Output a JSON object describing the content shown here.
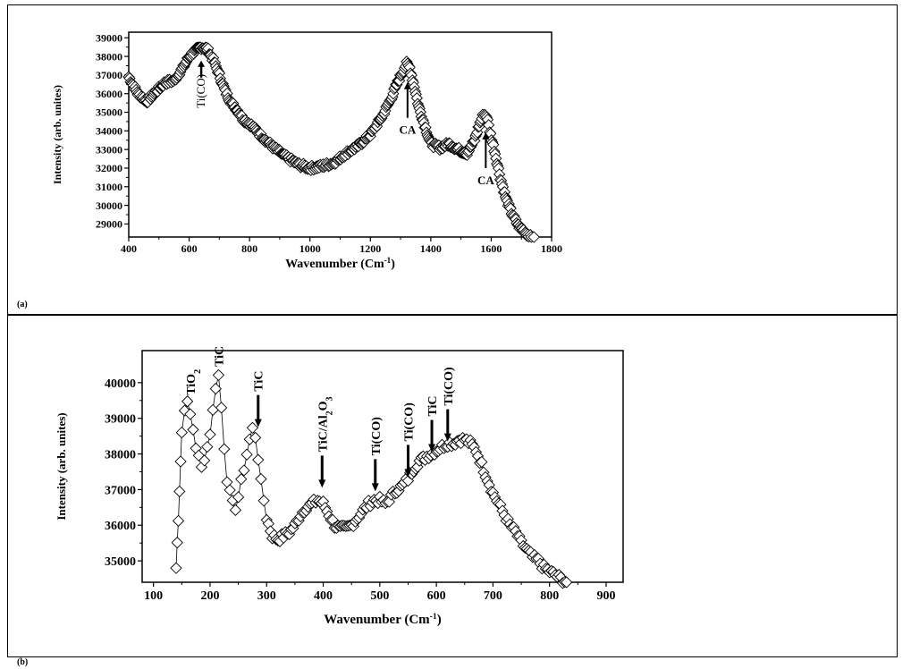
{
  "chart_data": [
    {
      "panel_label": "(a)",
      "type": "scatter",
      "marker": "open-diamond",
      "xlabel_main": "Wavenumber (Cm",
      "xlabel_sup": "-1",
      "xlabel_end": ")",
      "ylabel": "Intensity (arb. unites)",
      "xlim": [
        400,
        1800
      ],
      "ylim": [
        28300,
        39300
      ],
      "xticks": [
        400,
        600,
        800,
        1000,
        1200,
        1400,
        1600,
        1800
      ],
      "yticks": [
        29000,
        30000,
        31000,
        32000,
        33000,
        34000,
        35000,
        36000,
        37000,
        38000,
        39000
      ],
      "grid": false,
      "legend": "none",
      "series": [
        {
          "x": [
            400,
            430,
            460,
            490,
            520,
            550,
            580,
            600,
            620,
            640,
            660,
            680,
            700,
            720,
            740,
            760,
            780,
            800,
            840,
            880,
            920,
            960,
            1000,
            1040,
            1080,
            1120,
            1160,
            1200,
            1240,
            1270,
            1290,
            1310,
            1320,
            1330,
            1345,
            1360,
            1380,
            1400,
            1430,
            1460,
            1490,
            1520,
            1545,
            1560,
            1575,
            1585,
            1595,
            1610,
            1630,
            1650,
            1670,
            1690,
            1710,
            1730,
            1750,
            1770
          ],
          "y": [
            36900,
            36000,
            35600,
            36100,
            36600,
            36700,
            37400,
            38000,
            38300,
            38500,
            38400,
            37800,
            37000,
            36100,
            35500,
            35100,
            34600,
            34400,
            33700,
            33100,
            32600,
            32200,
            32000,
            32100,
            32300,
            32800,
            33200,
            33800,
            34800,
            35800,
            36600,
            37300,
            37600,
            37400,
            36400,
            35300,
            34300,
            33300,
            33100,
            33300,
            33000,
            32800,
            33500,
            34300,
            34900,
            34800,
            34000,
            33000,
            31500,
            30300,
            29500,
            28900,
            28600,
            28300,
            28100,
            28000
          ]
        }
      ],
      "annotations": [
        {
          "text": "Ti(CO)",
          "x": 640,
          "y": 38400,
          "vertical": true
        },
        {
          "text": "CA",
          "x": 1323,
          "y": 37200,
          "vertical": false
        },
        {
          "text": "CA",
          "x": 1582,
          "y": 34500,
          "vertical": false
        }
      ]
    },
    {
      "panel_label": "(b)",
      "type": "scatter",
      "marker": "open-diamond",
      "xlabel_main": "Wavenumber (Cm",
      "xlabel_sup": "-1",
      "xlabel_end": ")",
      "ylabel": "Intensity (arb. unites)",
      "xlim": [
        80,
        930
      ],
      "ylim": [
        34400,
        40900
      ],
      "xticks": [
        100,
        200,
        300,
        400,
        500,
        600,
        700,
        800,
        900
      ],
      "yticks": [
        35000,
        36000,
        37000,
        38000,
        39000,
        40000
      ],
      "grid": false,
      "legend": "none",
      "series": [
        {
          "x": [
            140,
            142,
            144,
            146,
            148,
            150,
            155,
            160,
            165,
            170,
            175,
            180,
            185,
            190,
            195,
            200,
            205,
            210,
            215,
            220,
            225,
            230,
            235,
            240,
            245,
            250,
            255,
            260,
            265,
            270,
            275,
            280,
            285,
            290,
            295,
            300,
            310,
            320,
            330,
            340,
            350,
            360,
            370,
            380,
            390,
            400,
            410,
            420,
            430,
            440,
            450,
            460,
            470,
            480,
            490,
            500,
            510,
            520,
            530,
            540,
            550,
            560,
            570,
            580,
            590,
            600,
            610,
            620,
            630,
            640,
            650,
            660,
            670,
            680,
            690,
            700,
            710,
            720,
            730,
            740,
            750,
            760,
            770,
            780,
            790,
            800,
            810,
            820,
            830
          ],
          "y": [
            34800,
            35500,
            36200,
            37000,
            37800,
            38600,
            39300,
            39400,
            39100,
            38700,
            38200,
            37900,
            37600,
            37900,
            38200,
            38600,
            39200,
            39900,
            40200,
            39300,
            38200,
            37300,
            36900,
            36600,
            36500,
            36800,
            37200,
            37600,
            38000,
            38400,
            38700,
            38500,
            37900,
            37200,
            36700,
            36200,
            35700,
            35600,
            35700,
            35800,
            36000,
            36300,
            36500,
            36600,
            36700,
            36600,
            36300,
            36000,
            35900,
            35900,
            36000,
            36200,
            36400,
            36600,
            36700,
            36700,
            36600,
            36800,
            37000,
            37100,
            37300,
            37600,
            37800,
            37900,
            38000,
            38100,
            38200,
            38300,
            38300,
            38400,
            38400,
            38300,
            38100,
            37700,
            37300,
            36900,
            36600,
            36300,
            36000,
            35800,
            35500,
            35300,
            35100,
            35000,
            34800,
            34700,
            34600,
            34500,
            34400
          ]
        }
      ],
      "annotations": [
        {
          "text": "TiO",
          "sub": "2",
          "x": 165,
          "y": 39500,
          "vertical": true,
          "arrow": false
        },
        {
          "text": "TiC",
          "x": 215,
          "y": 40300,
          "vertical": true,
          "arrow": false
        },
        {
          "text": "TiC",
          "x": 285,
          "y": 38600,
          "vertical": true,
          "arrow": true
        },
        {
          "text": "TiC/Al",
          "sub": "2",
          "text2": "O",
          "sub2": "3",
          "x": 398,
          "y": 36900,
          "vertical": true,
          "arrow": true
        },
        {
          "text": "Ti(CO)",
          "x": 492,
          "y": 36800,
          "vertical": true,
          "arrow": true
        },
        {
          "text": "Ti(CO)",
          "x": 550,
          "y": 37200,
          "vertical": true,
          "arrow": true
        },
        {
          "text": "TiC",
          "x": 592,
          "y": 37900,
          "vertical": true,
          "arrow": true
        },
        {
          "text": "Ti(CO)",
          "x": 620,
          "y": 38200,
          "vertical": true,
          "arrow": true
        }
      ]
    }
  ]
}
